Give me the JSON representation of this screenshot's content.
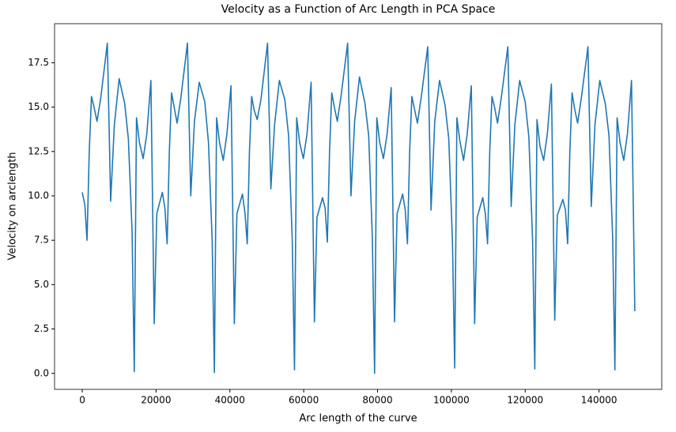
{
  "chart_data": {
    "type": "line",
    "title": "Velocity as a Function of Arc Length in PCA Space",
    "x_label": "Arc length of the curve",
    "y_label": "Velocity on arclength",
    "color": "#1f77b4",
    "xlim": [
      -7500,
      157000
    ],
    "ylim": [
      -0.9,
      19.7
    ],
    "xticks": [
      0,
      20000,
      40000,
      60000,
      80000,
      100000,
      120000,
      140000
    ],
    "yticks": [
      {
        "value": 0,
        "label": "0.0"
      },
      2.5,
      {
        "value": 5,
        "label": "5.0"
      },
      7.5,
      {
        "value": 10,
        "label": "10.0"
      },
      12.5,
      {
        "value": 15,
        "label": "15.0"
      },
      17.5
    ],
    "x": [
      0,
      700,
      1300,
      1900,
      2500,
      3200,
      4000,
      5000,
      6800,
      7700,
      8700,
      10000,
      11500,
      12500,
      13500,
      14100,
      14700,
      15500,
      16500,
      17500,
      18600,
      19500,
      20200,
      21700,
      22400,
      23000,
      23600,
      24200,
      24900,
      25700,
      26700,
      28500,
      29400,
      30400,
      31700,
      33200,
      34200,
      35200,
      35800,
      36400,
      37200,
      38200,
      39200,
      40300,
      41200,
      41900,
      43400,
      44100,
      44700,
      45300,
      45900,
      46600,
      47400,
      48400,
      50200,
      51100,
      52100,
      53400,
      54900,
      55900,
      56900,
      57500,
      58100,
      58900,
      59900,
      60900,
      62000,
      62900,
      63600,
      65100,
      65800,
      66400,
      67000,
      67600,
      68300,
      69100,
      70100,
      71900,
      72800,
      73800,
      75100,
      76600,
      77600,
      78600,
      79200,
      79800,
      80600,
      81600,
      82600,
      83700,
      84600,
      85300,
      86800,
      87500,
      88100,
      88700,
      89300,
      90000,
      90800,
      91800,
      93600,
      94500,
      95500,
      96800,
      98300,
      99300,
      100300,
      100900,
      101500,
      102300,
      103300,
      104300,
      105400,
      106300,
      107000,
      108500,
      109200,
      109800,
      110400,
      111000,
      111700,
      112500,
      113500,
      115300,
      116200,
      117200,
      118500,
      120000,
      121000,
      122000,
      122600,
      123200,
      124000,
      125000,
      126000,
      127100,
      128000,
      128700,
      130200,
      130900,
      131500,
      132100,
      132700,
      133400,
      134200,
      135200,
      137000,
      137900,
      138900,
      140200,
      141700,
      142700,
      143700,
      144300,
      144900,
      145700,
      146700,
      147700,
      148800,
      149700
    ],
    "values": [
      10.2,
      9.5,
      7.5,
      12.5,
      15.6,
      15.0,
      14.2,
      15.5,
      18.6,
      9.7,
      14.0,
      16.6,
      15.2,
      13.2,
      8.0,
      0.1,
      14.4,
      13.0,
      12.1,
      13.5,
      16.5,
      2.8,
      9.0,
      10.2,
      9.3,
      7.3,
      12.5,
      15.8,
      15.0,
      14.1,
      15.5,
      18.6,
      10.0,
      14.2,
      16.4,
      15.3,
      13.0,
      7.5,
      0.05,
      14.4,
      13.0,
      12.0,
      13.5,
      16.2,
      2.8,
      9.0,
      10.1,
      9.0,
      7.3,
      12.5,
      15.6,
      14.8,
      14.3,
      15.4,
      18.6,
      10.4,
      14.0,
      16.5,
      15.4,
      13.4,
      7.5,
      0.2,
      14.4,
      13.0,
      12.1,
      13.5,
      16.4,
      2.9,
      8.8,
      9.9,
      9.3,
      7.4,
      12.5,
      15.8,
      15.0,
      14.2,
      15.6,
      18.6,
      10.0,
      14.2,
      16.7,
      15.2,
      13.4,
      7.6,
      0.0,
      14.4,
      13.0,
      12.1,
      13.5,
      16.1,
      2.9,
      9.0,
      10.1,
      9.2,
      7.3,
      12.5,
      15.6,
      14.9,
      14.1,
      15.5,
      18.4,
      9.2,
      14.2,
      16.5,
      15.1,
      13.2,
      7.4,
      0.3,
      14.4,
      13.1,
      12.0,
      13.5,
      16.2,
      2.8,
      8.8,
      9.9,
      9.0,
      7.3,
      12.5,
      15.6,
      15.0,
      14.1,
      15.5,
      18.4,
      9.4,
      14.0,
      16.5,
      15.3,
      13.3,
      7.5,
      0.25,
      14.3,
      12.8,
      12.0,
      13.5,
      16.3,
      3.0,
      8.9,
      9.8,
      9.2,
      7.3,
      12.5,
      15.8,
      14.9,
      14.1,
      15.5,
      18.4,
      9.4,
      14.0,
      16.5,
      15.2,
      13.4,
      7.6,
      0.2,
      14.4,
      13.0,
      12.0,
      13.5,
      16.5,
      3.5
    ]
  }
}
